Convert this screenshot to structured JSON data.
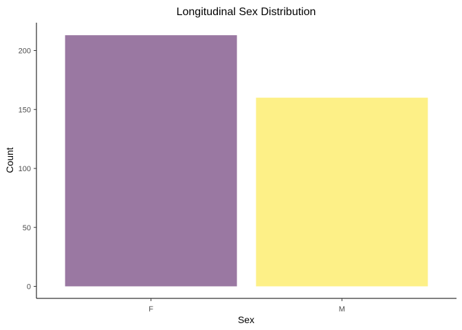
{
  "chart_data": {
    "type": "bar",
    "title": "Longitudinal Sex Distribution",
    "xlabel": "Sex",
    "ylabel": "Count",
    "categories": [
      "F",
      "M"
    ],
    "values": [
      213,
      160
    ],
    "colors": [
      "#9A78A2",
      "#FDF087"
    ],
    "ylim": [
      0,
      220
    ],
    "yticks": [
      0,
      50,
      100,
      150,
      200
    ],
    "grid": false,
    "legend": "none"
  }
}
